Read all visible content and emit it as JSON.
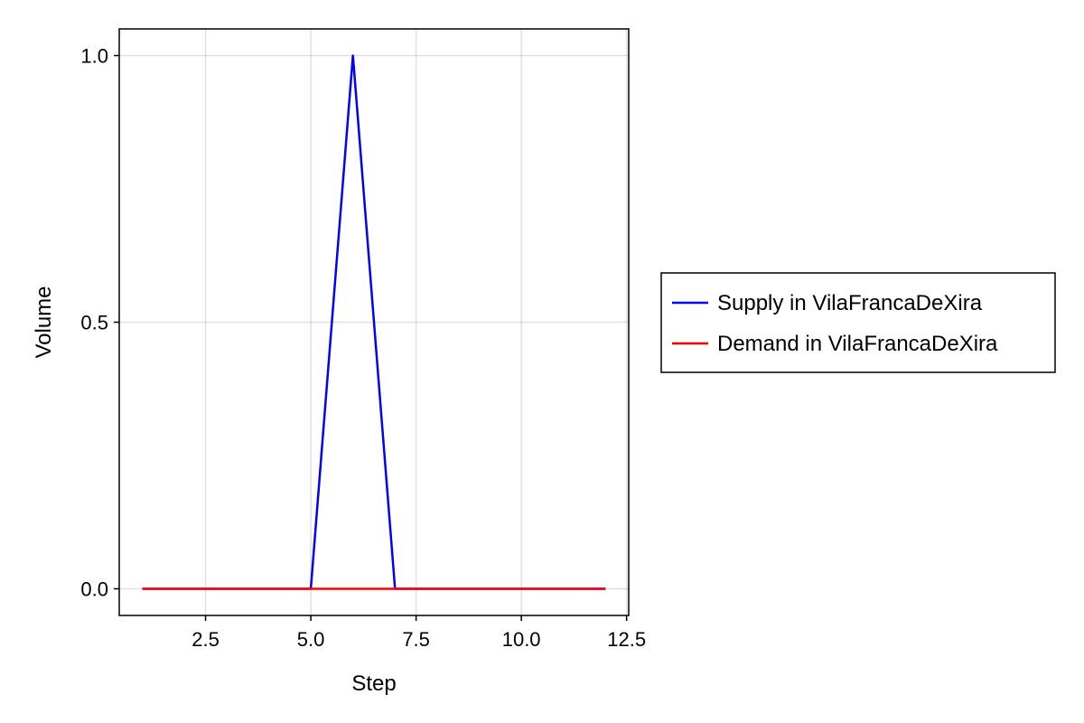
{
  "chart_data": {
    "type": "line",
    "title": "",
    "xlabel": "Step",
    "ylabel": "Volume",
    "xlim": [
      0.45,
      12.55
    ],
    "ylim": [
      -0.05,
      1.05
    ],
    "grid": true,
    "legend_position": "right",
    "x_ticks": [
      2.5,
      5.0,
      7.5,
      10.0,
      12.5
    ],
    "x_tick_labels": [
      "2.5",
      "5.0",
      "7.5",
      "10.0",
      "12.5"
    ],
    "y_ticks": [
      0.0,
      0.5,
      1.0
    ],
    "y_tick_labels": [
      "0.0",
      "0.5",
      "1.0"
    ],
    "x": [
      1,
      2,
      3,
      4,
      5,
      6,
      7,
      8,
      9,
      10,
      11,
      12
    ],
    "series": [
      {
        "name": "Supply in VilaFrancaDeXira",
        "color": "#0000ff",
        "values": [
          0,
          0,
          0,
          0,
          0,
          1,
          0,
          0,
          0,
          0,
          0,
          0
        ]
      },
      {
        "name": "Demand in VilaFrancaDeXira",
        "color": "#ff0000",
        "values": [
          0,
          0,
          0,
          0,
          0,
          0,
          0,
          0,
          0,
          0,
          0,
          0
        ]
      }
    ]
  }
}
